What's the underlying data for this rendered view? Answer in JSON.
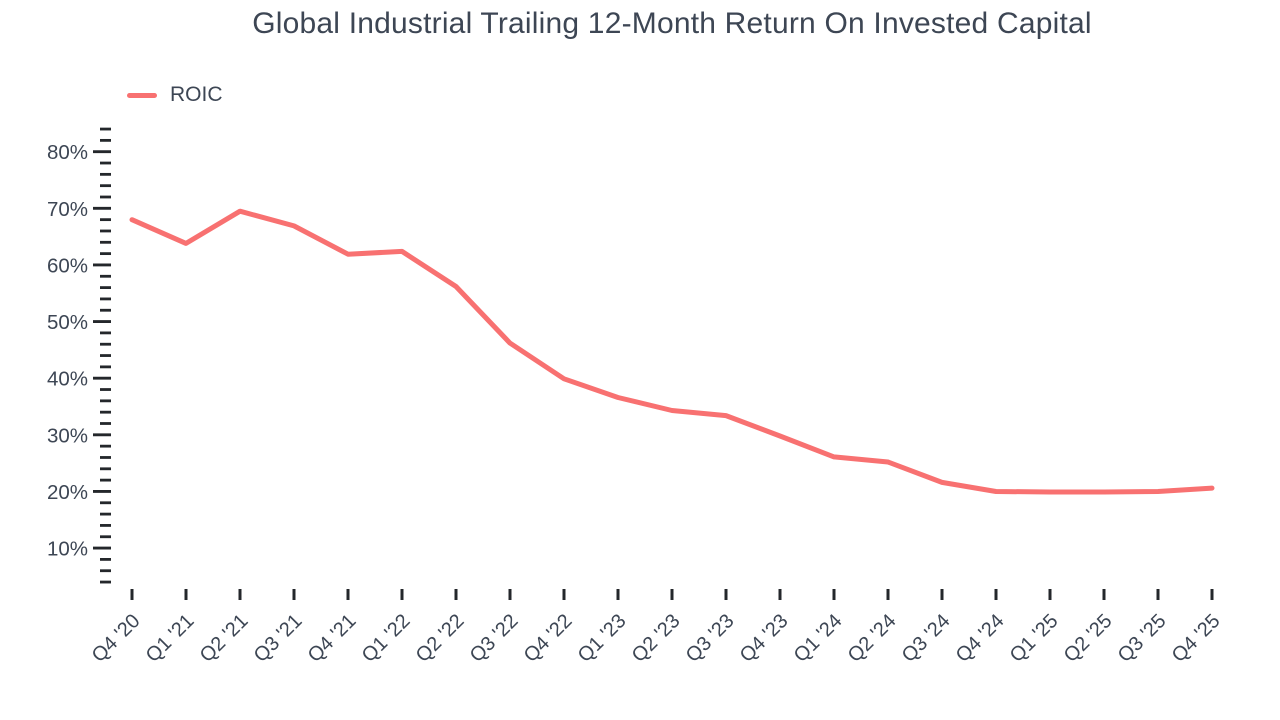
{
  "colors": {
    "background": "#ffffff",
    "text": "#3d4654",
    "tick": "#24272b",
    "accent": "#f87171"
  },
  "chart_data": {
    "type": "line",
    "title": "Global Industrial Trailing 12-Month Return On Invested Capital",
    "legend_position": "top-left",
    "grid": false,
    "categories": [
      "Q4 '20",
      "Q1 '21",
      "Q2 '21",
      "Q3 '21",
      "Q4 '21",
      "Q1 '22",
      "Q2 '22",
      "Q3 '22",
      "Q4 '22",
      "Q1 '23",
      "Q2 '23",
      "Q3 '23",
      "Q4 '23",
      "Q1 '24",
      "Q2 '24",
      "Q3 '24",
      "Q4 '24",
      "Q1 '25",
      "Q2 '25",
      "Q3 '25",
      "Q4 '25"
    ],
    "series": [
      {
        "name": "ROIC",
        "color": "#f87171",
        "values": [
          68.0,
          63.8,
          69.5,
          66.9,
          61.9,
          62.4,
          56.2,
          46.2,
          39.9,
          36.6,
          34.3,
          33.4,
          29.8,
          26.1,
          25.2,
          21.6,
          20.0,
          19.9,
          19.9,
          20.0,
          20.6
        ]
      }
    ],
    "y_axis": {
      "unit": "%",
      "tick_min": 4,
      "tick_max": 84,
      "tick_step": 2,
      "label_step": 10,
      "tick_labels": [
        "10%",
        "20%",
        "30%",
        "40%",
        "50%",
        "60%",
        "70%",
        "80%"
      ]
    }
  }
}
